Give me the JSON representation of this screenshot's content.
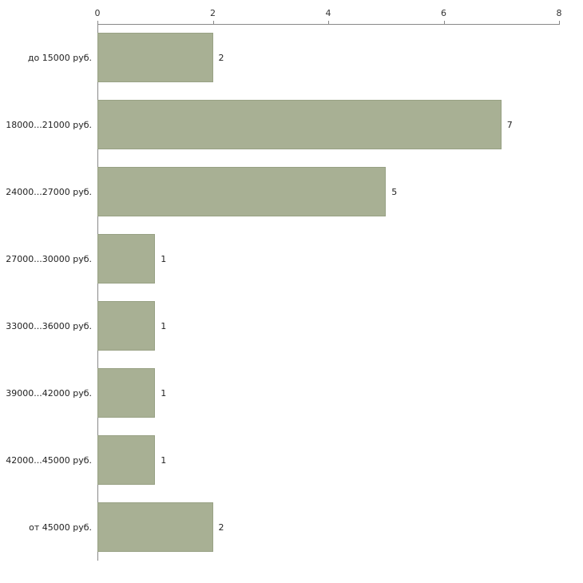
{
  "chart_data": {
    "type": "bar",
    "orientation": "horizontal",
    "title": "",
    "xlabel": "",
    "ylabel": "",
    "categories": [
      "до 15000 руб.",
      "18000...21000 руб.",
      "24000...27000 руб.",
      "27000...30000 руб.",
      "33000...36000 руб.",
      "39000...42000 руб.",
      "42000...45000 руб.",
      "от 45000 руб."
    ],
    "values": [
      2,
      7,
      5,
      1,
      1,
      1,
      1,
      2
    ],
    "xlim": [
      0,
      8
    ],
    "x_ticks": [
      0,
      2,
      4,
      6,
      8
    ],
    "grid": false,
    "legend": "none",
    "bar_color": "#a8b094",
    "bar_border_color": "#98a184",
    "axis_color": "#888888",
    "text_color": "#222222",
    "background": "#ffffff"
  }
}
